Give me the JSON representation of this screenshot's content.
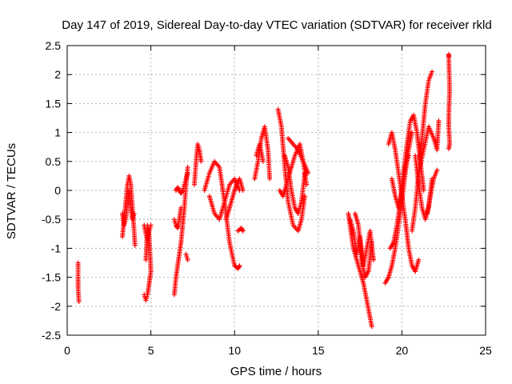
{
  "chart_data": {
    "type": "scatter",
    "title": "Day 147 of 2019, Sidereal Day-to-day VTEC variation (SDTVAR) for receiver rkld",
    "xlabel": "GPS time / hours",
    "ylabel": "SDTVAR / TECUs",
    "xlim": [
      0,
      25
    ],
    "ylim": [
      -2.5,
      2.5
    ],
    "xticks": [
      "0",
      "5",
      "10",
      "15",
      "20",
      "25"
    ],
    "yticks": [
      "-2.5",
      "-2",
      "-1.5",
      "-1",
      "-0.5",
      "0",
      "0.5",
      "1",
      "1.5",
      "2",
      "2.5"
    ],
    "grid": true,
    "marker": "plus",
    "color": "#ff0000",
    "segments": [
      {
        "x": [
          0.65,
          0.65,
          0.65,
          0.7
        ],
        "y": [
          -1.25,
          -1.5,
          -1.7,
          -1.92
        ]
      },
      {
        "x": [
          3.3,
          3.4,
          3.5,
          3.6,
          3.7,
          3.8,
          3.9,
          4.0,
          4.05
        ],
        "y": [
          -0.8,
          -0.5,
          -0.2,
          0.1,
          0.25,
          0.1,
          -0.3,
          -0.7,
          -0.95
        ]
      },
      {
        "x": [
          3.3,
          3.4,
          3.5,
          3.6,
          3.7,
          3.8,
          3.9,
          4.0
        ],
        "y": [
          -0.4,
          -0.6,
          -0.5,
          -0.2,
          0.0,
          -0.3,
          -0.5,
          -0.4
        ]
      },
      {
        "x": [
          4.6,
          4.7,
          4.8,
          4.9,
          5.0,
          4.95,
          4.9,
          4.8,
          4.7
        ],
        "y": [
          -1.8,
          -1.9,
          -1.8,
          -1.6,
          -1.4,
          -1.1,
          -0.8,
          -0.6,
          -1.2
        ]
      },
      {
        "x": [
          4.6,
          4.7,
          4.8,
          4.9,
          5.0
        ],
        "y": [
          -0.6,
          -0.75,
          -0.85,
          -0.7,
          -0.6
        ]
      },
      {
        "x": [
          6.4,
          6.5,
          6.6,
          6.7,
          6.8,
          6.9,
          7.0,
          7.1,
          7.2
        ],
        "y": [
          -1.8,
          -1.5,
          -1.3,
          -1.1,
          -0.9,
          -0.6,
          -0.3,
          0.1,
          0.4
        ]
      },
      {
        "x": [
          6.4,
          6.5,
          6.6,
          6.7,
          6.8
        ],
        "y": [
          -0.5,
          -0.6,
          -0.65,
          -0.5,
          -0.3
        ]
      },
      {
        "x": [
          6.5,
          6.6,
          6.7,
          6.8,
          6.9,
          7.0,
          7.1,
          7.2
        ],
        "y": [
          0.0,
          0.05,
          0.0,
          -0.05,
          0.0,
          0.1,
          0.2,
          0.3
        ]
      },
      {
        "x": [
          7.1,
          7.2
        ],
        "y": [
          -1.1,
          -1.2
        ]
      },
      {
        "x": [
          7.6,
          7.7,
          7.8,
          7.9,
          8.0
        ],
        "y": [
          0.1,
          0.5,
          0.8,
          0.7,
          0.5
        ]
      },
      {
        "x": [
          8.2,
          8.5,
          8.8,
          9.1,
          9.4,
          9.7,
          10.0,
          10.2,
          10.3
        ],
        "y": [
          0.0,
          0.3,
          0.5,
          0.4,
          -0.2,
          -0.9,
          -1.3,
          -1.35,
          -1.3
        ]
      },
      {
        "x": [
          8.5,
          8.8,
          9.1,
          9.4,
          9.7,
          10.0,
          10.3
        ],
        "y": [
          -0.1,
          -0.4,
          -0.5,
          -0.2,
          0.1,
          0.2,
          0.0
        ]
      },
      {
        "x": [
          9.5,
          9.7,
          9.9,
          10.1,
          10.3,
          10.5
        ],
        "y": [
          -0.5,
          -0.3,
          -0.1,
          0.1,
          0.2,
          0.0
        ]
      },
      {
        "x": [
          10.2,
          10.4,
          10.5
        ],
        "y": [
          -0.7,
          -0.65,
          -0.7
        ]
      },
      {
        "x": [
          11.2,
          11.4,
          11.6,
          11.8,
          12.0,
          12.1
        ],
        "y": [
          0.2,
          0.5,
          0.9,
          1.1,
          0.7,
          0.2
        ]
      },
      {
        "x": [
          11.3,
          11.5,
          11.7
        ],
        "y": [
          0.6,
          0.8,
          0.5
        ]
      },
      {
        "x": [
          12.6,
          12.8,
          13.0,
          13.2,
          13.5,
          13.8,
          14.0,
          14.2
        ],
        "y": [
          1.4,
          1.1,
          0.4,
          -0.2,
          -0.6,
          -0.7,
          -0.5,
          -0.1
        ]
      },
      {
        "x": [
          12.7,
          12.9,
          13.1,
          13.3,
          13.6,
          13.9,
          14.1,
          14.3
        ],
        "y": [
          0.0,
          -0.1,
          0.1,
          0.3,
          0.6,
          0.8,
          0.5,
          0.1
        ]
      },
      {
        "x": [
          13.0,
          13.2,
          13.4,
          13.6,
          13.8,
          14.0,
          14.2
        ],
        "y": [
          0.6,
          0.4,
          0.0,
          -0.3,
          -0.4,
          -0.2,
          0.3
        ]
      },
      {
        "x": [
          13.2,
          13.5,
          13.8,
          14.1,
          14.4
        ],
        "y": [
          0.9,
          0.8,
          0.7,
          0.5,
          0.3
        ]
      },
      {
        "x": [
          16.8,
          16.9,
          17.0,
          17.1,
          17.3,
          17.5,
          17.7,
          17.9,
          18.1,
          18.2
        ],
        "y": [
          -0.4,
          -0.6,
          -0.8,
          -1.0,
          -1.2,
          -1.4,
          -1.6,
          -1.9,
          -2.2,
          -2.35
        ]
      },
      {
        "x": [
          16.9,
          17.1,
          17.3,
          17.5,
          17.7,
          17.9,
          18.1,
          18.3
        ],
        "y": [
          -0.5,
          -0.7,
          -1.1,
          -0.8,
          -1.3,
          -1.0,
          -0.7,
          -1.2
        ]
      },
      {
        "x": [
          17.2,
          17.4,
          17.6,
          17.8,
          18.0,
          18.2
        ],
        "y": [
          -0.4,
          -0.6,
          -1.2,
          -1.5,
          -1.4,
          -0.9
        ]
      },
      {
        "x": [
          19.0,
          19.2,
          19.4,
          19.6,
          19.8,
          20.0,
          20.2,
          20.4,
          20.6
        ],
        "y": [
          -1.6,
          -1.5,
          -1.3,
          -1.0,
          -0.6,
          -0.2,
          0.3,
          0.7,
          1.0
        ]
      },
      {
        "x": [
          19.2,
          19.4,
          19.6,
          19.8,
          20.0,
          20.2,
          20.4,
          20.6,
          20.8,
          21.0
        ],
        "y": [
          0.8,
          1.0,
          0.7,
          0.3,
          -0.1,
          -0.5,
          -1.0,
          -1.3,
          -1.4,
          -1.2
        ]
      },
      {
        "x": [
          19.3,
          19.5,
          19.7,
          19.9,
          20.1,
          20.3,
          20.5,
          20.7,
          20.9,
          21.1,
          21.3
        ],
        "y": [
          -1.0,
          -0.9,
          -0.6,
          -0.2,
          0.3,
          0.8,
          1.2,
          1.3,
          1.0,
          0.5,
          0.0
        ]
      },
      {
        "x": [
          19.4,
          19.6,
          19.8,
          20.0,
          20.2,
          20.4
        ],
        "y": [
          0.2,
          -0.1,
          -0.3,
          0.0,
          0.4,
          0.6
        ]
      },
      {
        "x": [
          20.6,
          20.8,
          21.0,
          21.2,
          21.4,
          21.6,
          21.8
        ],
        "y": [
          -0.7,
          -0.3,
          0.3,
          0.9,
          1.5,
          1.9,
          2.05
        ]
      },
      {
        "x": [
          20.8,
          21.0,
          21.2,
          21.4,
          21.6,
          21.8
        ],
        "y": [
          0.6,
          0.1,
          -0.3,
          -0.5,
          -0.3,
          0.2
        ]
      },
      {
        "x": [
          21.0,
          21.3,
          21.6,
          21.9,
          22.1,
          22.2
        ],
        "y": [
          0.3,
          0.7,
          1.1,
          0.9,
          0.7,
          1.2
        ]
      },
      {
        "x": [
          21.5,
          21.7,
          21.9,
          22.1
        ],
        "y": [
          -0.4,
          -0.1,
          0.2,
          0.35
        ]
      },
      {
        "x": [
          22.8,
          22.8,
          22.85,
          22.8,
          22.8,
          22.85,
          22.8
        ],
        "y": [
          2.35,
          2.3,
          1.72,
          1.3,
          1.1,
          0.8,
          0.72
        ]
      }
    ]
  }
}
